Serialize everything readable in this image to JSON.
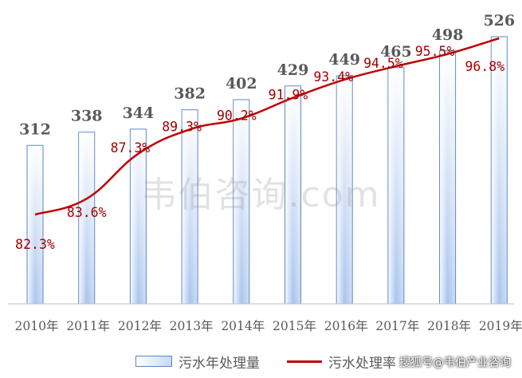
{
  "chart_data": {
    "type": "bar",
    "categories": [
      "2010年",
      "2011年",
      "2012年",
      "2013年",
      "2014年",
      "2015年",
      "2016年",
      "2017年",
      "2018年",
      "2019年"
    ],
    "series": [
      {
        "name": "污水年处理量",
        "type": "bar",
        "values": [
          312,
          338,
          344,
          382,
          402,
          429,
          449,
          465,
          498,
          526
        ],
        "labels": [
          "312",
          "338",
          "344",
          "382",
          "402",
          "429",
          "449",
          "465",
          "498",
          "526"
        ],
        "color": "#5b86c8"
      },
      {
        "name": "污水处理率",
        "type": "line",
        "values": [
          82.3,
          83.6,
          87.3,
          89.3,
          90.2,
          91.9,
          93.4,
          94.5,
          95.5,
          96.8
        ],
        "labels": [
          "82.3%",
          "83.6%",
          "87.3%",
          "89.3%",
          "90.2%",
          "91.9%",
          "93.4%",
          "94.5%",
          "95.5%",
          "96.8%"
        ],
        "color": "#c00000"
      }
    ],
    "y_bar_range": [
      0,
      550
    ],
    "y_line_range": [
      80,
      98
    ],
    "grid": false,
    "legend_position": "bottom"
  },
  "legend": {
    "bar_label": "污水年处理量",
    "line_label": "污水处理率"
  },
  "watermark": "韦伯咨询.com",
  "source": "搜狐号@韦伯产业咨询"
}
